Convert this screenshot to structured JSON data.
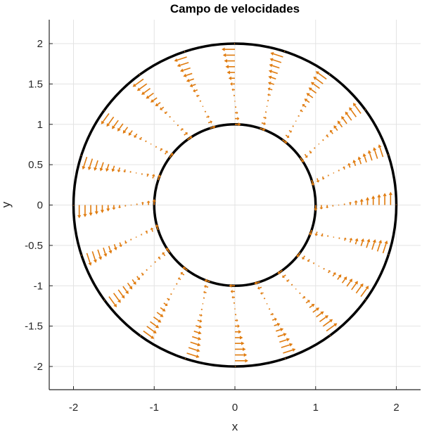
{
  "chart_data": {
    "type": "quiver",
    "title": "Campo de velocidades",
    "xlabel": "x",
    "ylabel": "y",
    "xlim": [
      -2.3,
      2.3
    ],
    "ylim": [
      -2.29,
      2.29
    ],
    "grid": true,
    "xticks": [
      -2,
      -1,
      0,
      1,
      2
    ],
    "xtick_labels": [
      "-2",
      "-1",
      "0",
      "1",
      "2"
    ],
    "yticks": [
      2,
      1.5,
      1,
      0.5,
      0,
      -0.5,
      -1,
      -1.5,
      -2
    ],
    "ytick_labels": [
      "2",
      "1.5",
      "1",
      "0.5",
      "0",
      "-0.5",
      "-1",
      "-1.5",
      "-2"
    ],
    "circles": [
      {
        "name": "outer-cylinder",
        "center": [
          0,
          0
        ],
        "radius": 2,
        "color": "#000000"
      },
      {
        "name": "inner-cylinder",
        "center": [
          0,
          0
        ],
        "radius": 1,
        "color": "#000000"
      }
    ],
    "quiver": {
      "color": "#E07B0E",
      "direction": "tangential-counterclockwise",
      "angles_deg": [
        0,
        18,
        36,
        54,
        72,
        90,
        108,
        126,
        144,
        162,
        180,
        198,
        216,
        234,
        252,
        270,
        288,
        306,
        324,
        342
      ],
      "radii": [
        1.0,
        1.071,
        1.143,
        1.214,
        1.286,
        1.357,
        1.429,
        1.5,
        1.571,
        1.643,
        1.714,
        1.786,
        1.857,
        1.929,
        2.0
      ],
      "tangential_velocity": [
        -0.075,
        -0.055,
        -0.04,
        -0.02,
        0.0,
        0.02,
        0.04,
        0.06,
        0.08,
        0.1,
        0.118,
        0.135,
        0.15,
        0.165,
        0.01
      ]
    }
  },
  "labels": {
    "title": "Campo de velocidades",
    "xlabel": "x",
    "ylabel": "y"
  }
}
